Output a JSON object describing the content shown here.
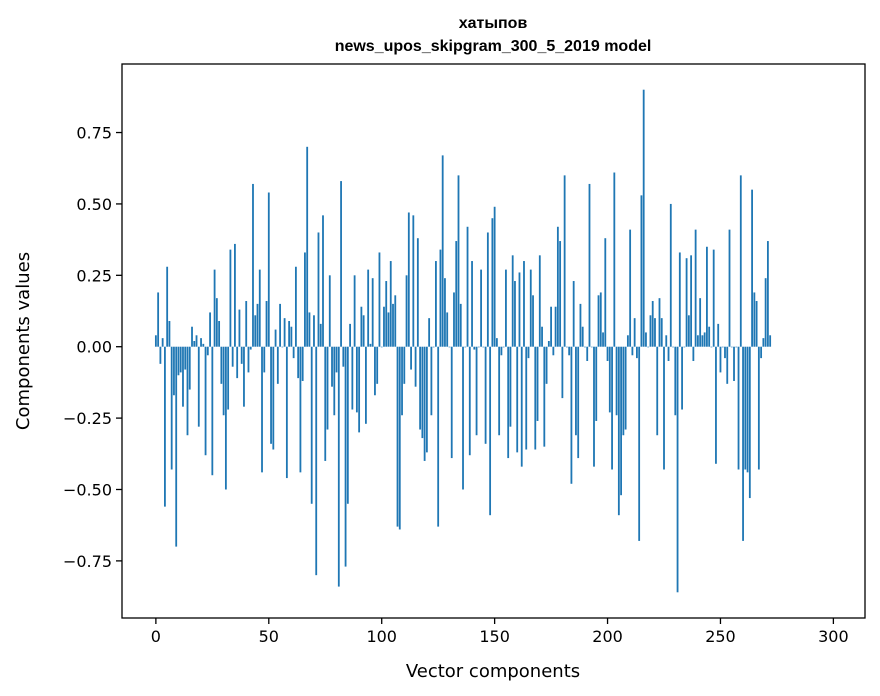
{
  "chart_data": {
    "type": "bar",
    "title": "хатыпов",
    "subtitle": "news_upos_skipgram_300_5_2019 model",
    "xlabel": "Vector components",
    "ylabel": "Components values",
    "xlim": [
      -15,
      314
    ],
    "ylim": [
      -0.95,
      0.99
    ],
    "xticks": [
      0,
      50,
      100,
      150,
      200,
      250,
      300
    ],
    "yticks": [
      -0.75,
      -0.5,
      -0.25,
      0.0,
      0.25,
      0.5,
      0.75
    ],
    "ytick_labels": [
      "−0.75",
      "−0.50",
      "−0.25",
      "0.00",
      "0.25",
      "0.50",
      "0.75"
    ],
    "xtick_labels": [
      "0",
      "50",
      "100",
      "150",
      "200",
      "250",
      "300"
    ],
    "color": "#1f77b4",
    "values": [
      0.04,
      0.19,
      -0.06,
      0.03,
      -0.56,
      0.28,
      0.09,
      -0.43,
      -0.17,
      -0.7,
      -0.1,
      -0.09,
      -0.21,
      -0.08,
      -0.31,
      -0.15,
      0.07,
      0.02,
      0.04,
      -0.28,
      0.03,
      0.01,
      -0.38,
      -0.03,
      0.12,
      -0.45,
      0.27,
      0.17,
      0.09,
      -0.13,
      -0.24,
      -0.5,
      -0.22,
      0.34,
      -0.07,
      0.36,
      -0.11,
      0.13,
      -0.06,
      -0.21,
      0.16,
      -0.09,
      -0.01,
      0.57,
      0.11,
      0.15,
      0.27,
      -0.44,
      -0.09,
      0.16,
      0.54,
      -0.34,
      -0.36,
      0.06,
      -0.13,
      0.15,
      0.0,
      0.1,
      -0.46,
      0.09,
      0.07,
      -0.04,
      0.28,
      -0.11,
      -0.44,
      -0.12,
      0.33,
      0.7,
      0.12,
      -0.55,
      0.11,
      -0.8,
      0.4,
      0.08,
      0.46,
      -0.4,
      -0.29,
      0.25,
      -0.14,
      -0.24,
      -0.09,
      -0.84,
      0.58,
      -0.07,
      -0.77,
      -0.55,
      0.08,
      -0.22,
      0.25,
      -0.23,
      -0.3,
      0.14,
      0.11,
      -0.27,
      0.27,
      0.01,
      0.24,
      -0.17,
      -0.13,
      0.33,
      0.0,
      0.14,
      0.23,
      0.12,
      0.3,
      0.15,
      0.18,
      -0.63,
      -0.64,
      -0.24,
      -0.13,
      0.25,
      0.47,
      -0.08,
      0.46,
      -0.14,
      0.38,
      -0.29,
      -0.32,
      -0.4,
      -0.37,
      0.1,
      -0.24,
      0.0,
      0.3,
      -0.63,
      0.34,
      0.67,
      0.24,
      0.12,
      0.0,
      -0.39,
      0.19,
      0.37,
      0.6,
      0.15,
      -0.5,
      0.0,
      0.42,
      -0.38,
      0.3,
      -0.01,
      -0.31,
      0.0,
      0.27,
      0.0,
      -0.34,
      0.4,
      -0.59,
      0.45,
      0.49,
      0.03,
      -0.31,
      -0.03,
      0.0,
      0.27,
      -0.39,
      -0.28,
      0.32,
      0.23,
      -0.37,
      0.26,
      -0.42,
      0.3,
      -0.36,
      -0.04,
      0.27,
      0.18,
      -0.36,
      -0.26,
      0.32,
      0.07,
      -0.35,
      -0.13,
      0.02,
      0.14,
      -0.03,
      0.14,
      0.42,
      0.37,
      -0.18,
      0.6,
      0.0,
      -0.03,
      -0.48,
      0.23,
      -0.31,
      -0.39,
      0.15,
      0.07,
      0.0,
      -0.05,
      0.57,
      0.0,
      -0.42,
      -0.26,
      0.18,
      0.19,
      0.05,
      0.38,
      -0.05,
      -0.23,
      -0.43,
      0.61,
      -0.24,
      -0.59,
      -0.52,
      -0.31,
      -0.29,
      0.04,
      0.41,
      -0.03,
      0.1,
      -0.04,
      -0.68,
      0.53,
      0.9,
      0.05,
      0.0,
      0.11,
      0.16,
      0.1,
      -0.31,
      0.17,
      0.1,
      -0.43,
      0.04,
      -0.05,
      0.5,
      0.0,
      -0.24,
      -0.86,
      0.33,
      -0.22,
      0.0,
      0.31,
      0.11,
      0.32,
      -0.05,
      0.41,
      0.04,
      0.17,
      0.04,
      0.05,
      0.35,
      0.07,
      0.0,
      0.34,
      -0.41,
      0.08,
      -0.09,
      0.0,
      -0.04,
      -0.13,
      0.41,
      0.0,
      -0.12,
      0.0,
      -0.43,
      0.6,
      -0.68,
      -0.43,
      -0.44,
      -0.53,
      0.55,
      0.19,
      0.16,
      -0.43,
      -0.04,
      0.03,
      0.24,
      0.37,
      0.04
    ]
  }
}
